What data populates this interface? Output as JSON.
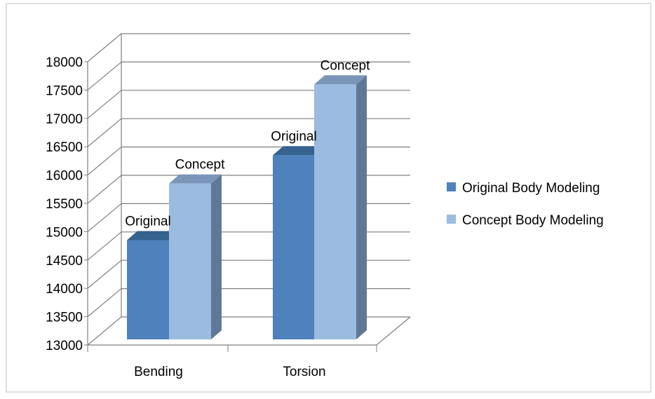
{
  "chart_data": {
    "type": "bar",
    "title": "",
    "xlabel": "",
    "ylabel": "",
    "categories": [
      "Bending",
      "Torsion"
    ],
    "series": [
      {
        "name": "Original Body Modeling",
        "values": [
          14850,
          16350
        ],
        "data_labels": [
          "Original",
          "Original"
        ],
        "color_front": "#4F81BD",
        "color_side": "#3B6390",
        "color_top": "#35628E"
      },
      {
        "name": "Concept Body Modeling",
        "values": [
          15850,
          17600
        ],
        "data_labels": [
          "Concept",
          "Concept"
        ],
        "color_front": "#9BBBE0",
        "color_side": "#5F7895",
        "color_top": "#7A95B8"
      }
    ],
    "ylim": [
      13000,
      18000
    ],
    "yticks": [
      "13000",
      "13500",
      "14000",
      "14500",
      "15000",
      "15500",
      "16000",
      "16500",
      "17000",
      "17500",
      "18000"
    ],
    "grid": true,
    "legend_position": "right",
    "three_d": true
  }
}
